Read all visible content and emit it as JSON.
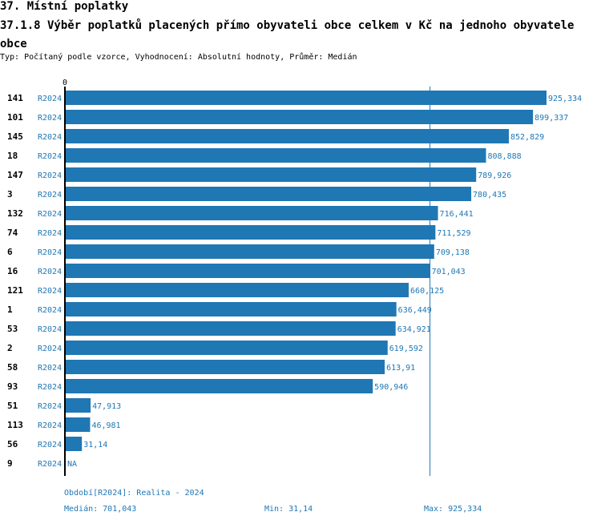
{
  "title": "37. Místní poplatky",
  "subtitle": "37.1.8 Výběr poplatků placených přímo obyvateli obce celkem  v Kč na jednoho obyvatele obce",
  "info": "Typ: Počítaný podle vzorce, Vyhodnocení: Absolutní hodnoty, Průměr: Medián",
  "chart_data": {
    "type": "bar",
    "orientation": "horizontal",
    "axis_zero_label": "0",
    "xlim": [
      0,
      925.334
    ],
    "period": "R2024",
    "categories": [
      "141",
      "101",
      "145",
      "18",
      "147",
      "3",
      "132",
      "74",
      "6",
      "16",
      "121",
      "1",
      "53",
      "2",
      "58",
      "93",
      "51",
      "113",
      "56",
      "9"
    ],
    "values": [
      925.334,
      899.337,
      852.829,
      808.888,
      789.926,
      780.435,
      716.441,
      711.529,
      709.138,
      701.043,
      660.125,
      636.449,
      634.921,
      619.592,
      613.91,
      590.946,
      47.913,
      46.981,
      31.14,
      null
    ],
    "value_labels": [
      "925,334",
      "899,337",
      "852,829",
      "808,888",
      "789,926",
      "780,435",
      "716,441",
      "711,529",
      "709,138",
      "701,043",
      "660,125",
      "636,449",
      "634,921",
      "619,592",
      "613,91",
      "590,946",
      "47,913",
      "46,981",
      "31,14",
      "NA"
    ],
    "median": 701.043,
    "color": "#1f77b4"
  },
  "footer": {
    "period": "Období[R2024]: Realita - 2024",
    "median": "Medián: 701,043",
    "min": "Min: 31,14",
    "max": "Max: 925,334"
  }
}
